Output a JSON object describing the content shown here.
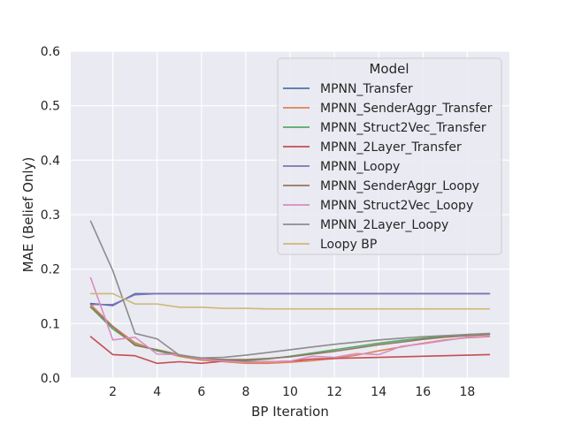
{
  "chart_data": {
    "type": "line",
    "xlabel": "BP Iteration",
    "ylabel": "MAE (Belief Only)",
    "xlim": [
      0.1,
      19.9
    ],
    "ylim": [
      0,
      0.6
    ],
    "xticks": [
      2,
      4,
      6,
      8,
      10,
      12,
      14,
      16,
      18
    ],
    "yticks": [
      0.0,
      0.1,
      0.2,
      0.3,
      0.4,
      0.5,
      0.6
    ],
    "ytick_labels": [
      "0.0",
      "0.1",
      "0.2",
      "0.3",
      "0.4",
      "0.5",
      "0.6"
    ],
    "grid": true,
    "legend": {
      "title": "Model",
      "placement": "upper-right"
    },
    "x": [
      1,
      2,
      3,
      4,
      5,
      6,
      7,
      8,
      9,
      10,
      11,
      12,
      13,
      14,
      15,
      16,
      17,
      18,
      19
    ],
    "series": [
      {
        "name": "MPNN_Transfer",
        "color": "#4c72b0",
        "values": [
          0.137,
          0.133,
          0.155,
          0.155,
          0.155,
          0.155,
          0.155,
          0.155,
          0.155,
          0.155,
          0.155,
          0.155,
          0.155,
          0.155,
          0.155,
          0.155,
          0.155,
          0.155,
          0.155
        ]
      },
      {
        "name": "MPNN_SenderAggr_Transfer",
        "color": "#dd8452",
        "values": [
          0.135,
          0.095,
          0.065,
          0.05,
          0.04,
          0.033,
          0.03,
          0.027,
          0.027,
          0.029,
          0.032,
          0.036,
          0.042,
          0.05,
          0.057,
          0.064,
          0.07,
          0.074,
          0.076
        ]
      },
      {
        "name": "MPNN_Struct2Vec_Transfer",
        "color": "#55a868",
        "values": [
          0.13,
          0.09,
          0.062,
          0.05,
          0.042,
          0.035,
          0.032,
          0.032,
          0.035,
          0.04,
          0.046,
          0.052,
          0.058,
          0.064,
          0.069,
          0.073,
          0.077,
          0.08,
          0.081
        ]
      },
      {
        "name": "MPNN_2Layer_Transfer",
        "color": "#c44e52",
        "values": [
          0.076,
          0.043,
          0.041,
          0.027,
          0.03,
          0.027,
          0.031,
          0.03,
          0.03,
          0.031,
          0.035,
          0.036,
          0.037,
          0.038,
          0.039,
          0.04,
          0.041,
          0.042,
          0.043
        ]
      },
      {
        "name": "MPNN_Loopy",
        "color": "#8172b3",
        "values": [
          0.135,
          0.135,
          0.153,
          0.155,
          0.155,
          0.155,
          0.155,
          0.155,
          0.155,
          0.155,
          0.155,
          0.155,
          0.155,
          0.155,
          0.155,
          0.155,
          0.155,
          0.155,
          0.155
        ]
      },
      {
        "name": "MPNN_SenderAggr_Loopy",
        "color": "#937860",
        "values": [
          0.131,
          0.094,
          0.06,
          0.052,
          0.043,
          0.036,
          0.034,
          0.034,
          0.036,
          0.039,
          0.044,
          0.049,
          0.055,
          0.061,
          0.066,
          0.071,
          0.075,
          0.078,
          0.08
        ]
      },
      {
        "name": "MPNN_Struct2Vec_Loopy",
        "color": "#da8bc3",
        "values": [
          0.184,
          0.07,
          0.075,
          0.044,
          0.043,
          0.035,
          0.031,
          0.029,
          0.03,
          0.031,
          0.04,
          0.038,
          0.045,
          0.043,
          0.058,
          0.063,
          0.069,
          0.075,
          0.077
        ]
      },
      {
        "name": "MPNN_2Layer_Loopy",
        "color": "#8c8c8c",
        "values": [
          0.288,
          0.197,
          0.082,
          0.072,
          0.042,
          0.037,
          0.038,
          0.042,
          0.047,
          0.052,
          0.057,
          0.062,
          0.066,
          0.07,
          0.073,
          0.076,
          0.078,
          0.08,
          0.082
        ]
      },
      {
        "name": "Loopy BP",
        "color": "#ccb974",
        "values": [
          0.155,
          0.155,
          0.136,
          0.136,
          0.13,
          0.13,
          0.128,
          0.128,
          0.127,
          0.127,
          0.127,
          0.127,
          0.127,
          0.127,
          0.127,
          0.127,
          0.127,
          0.127,
          0.127
        ]
      }
    ]
  }
}
